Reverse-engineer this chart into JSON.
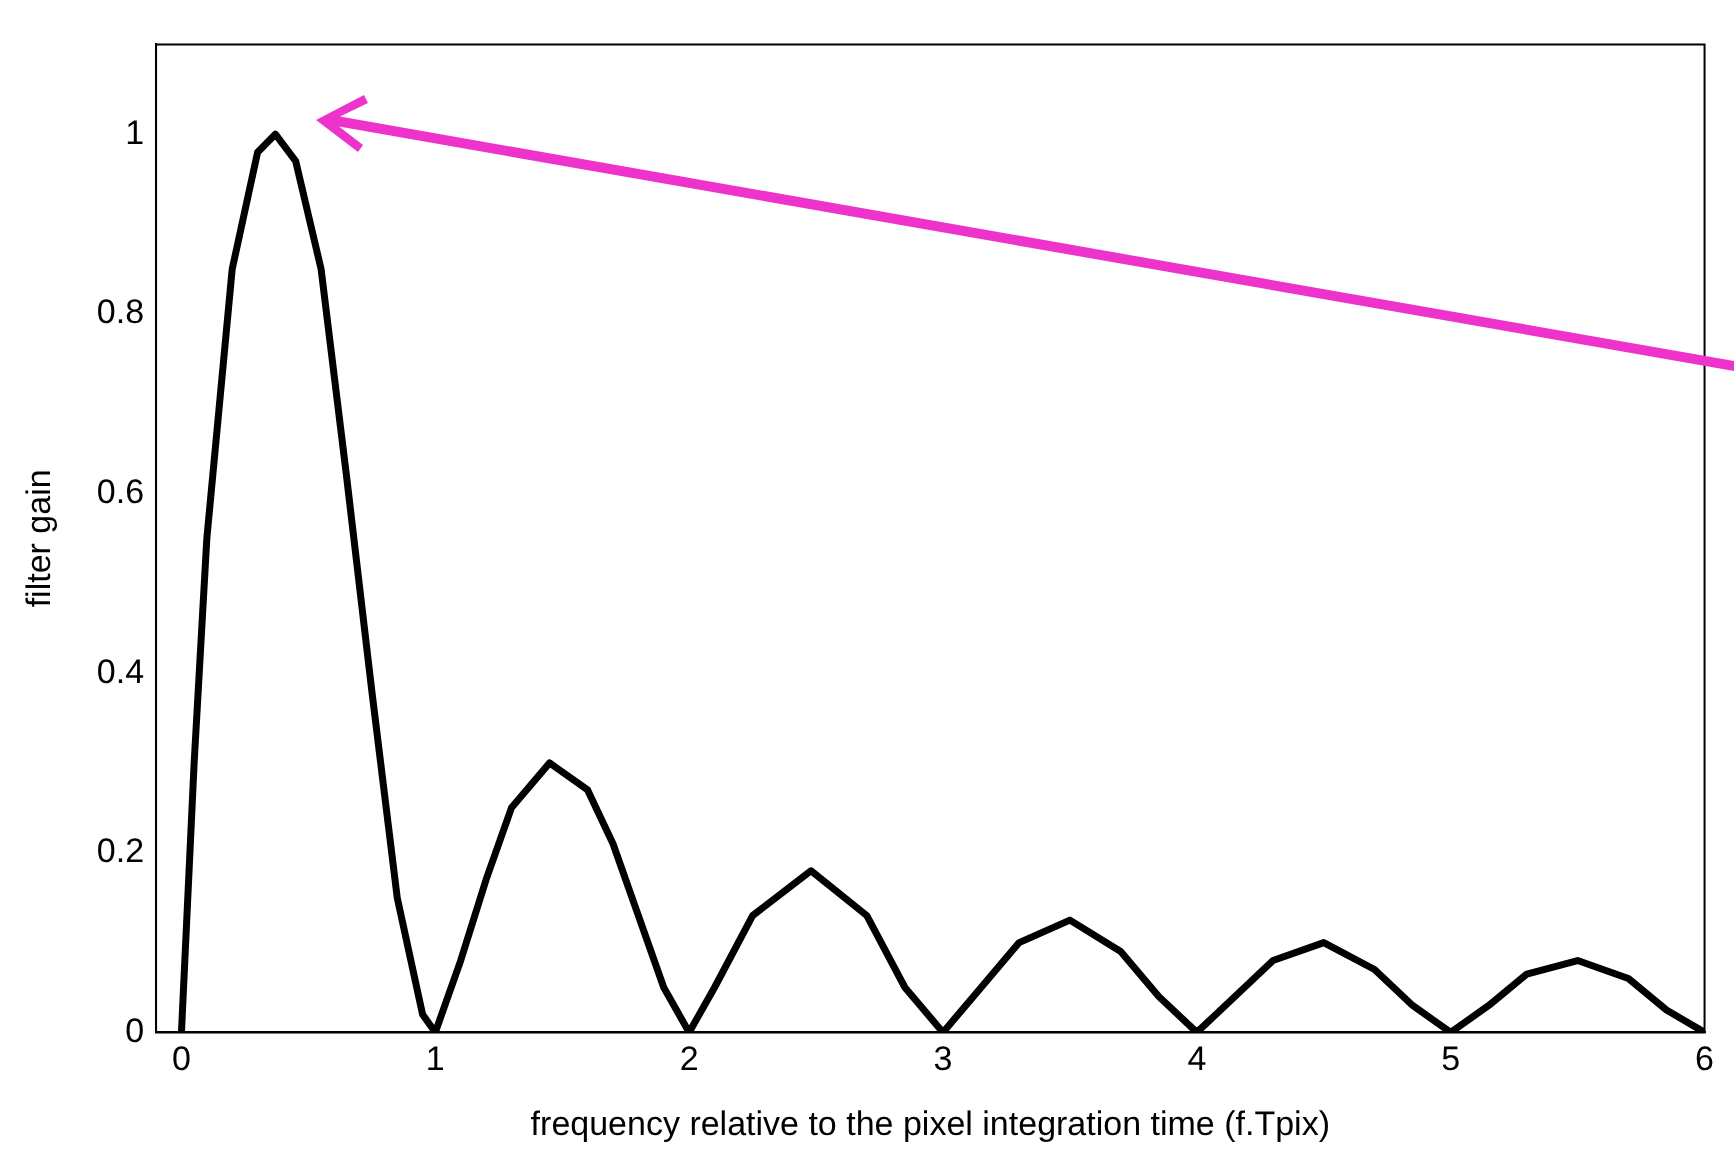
{
  "chart_data": {
    "type": "line",
    "xlabel": "frequency relative to the pixel integration time (f.Tpix)",
    "ylabel": "filter gain",
    "x": [
      0,
      0.05,
      0.1,
      0.2,
      0.3,
      0.37,
      0.45,
      0.55,
      0.65,
      0.75,
      0.85,
      0.95,
      1,
      1.1,
      1.2,
      1.3,
      1.45,
      1.6,
      1.7,
      1.8,
      1.9,
      2,
      2.1,
      2.25,
      2.48,
      2.7,
      2.85,
      3,
      3.15,
      3.3,
      3.5,
      3.7,
      3.85,
      4,
      4.15,
      4.3,
      4.5,
      4.7,
      4.85,
      5,
      5.15,
      5.3,
      5.5,
      5.7,
      5.85,
      6
    ],
    "series": [
      {
        "color": "#000000",
        "values": [
          0,
          0.3,
          0.55,
          0.85,
          0.98,
          1,
          0.97,
          0.85,
          0.62,
          0.38,
          0.15,
          0.02,
          0,
          0.08,
          0.17,
          0.25,
          0.3,
          0.27,
          0.21,
          0.13,
          0.05,
          0,
          0.05,
          0.13,
          0.18,
          0.13,
          0.05,
          0,
          0.05,
          0.1,
          0.125,
          0.09,
          0.04,
          0,
          0.04,
          0.08,
          0.1,
          0.07,
          0.03,
          0,
          0.03,
          0.065,
          0.08,
          0.06,
          0.025,
          0
        ]
      }
    ],
    "xlim": [
      -0.1,
      6
    ],
    "xticks": [
      0,
      1,
      2,
      3,
      4,
      5,
      6
    ],
    "ylim": [
      0,
      1.1
    ],
    "yticks": [
      0,
      0.2,
      0.4,
      0.6,
      0.8,
      1
    ],
    "grid": false,
    "legend": false,
    "marker": "none",
    "line_style": "solid"
  }
}
